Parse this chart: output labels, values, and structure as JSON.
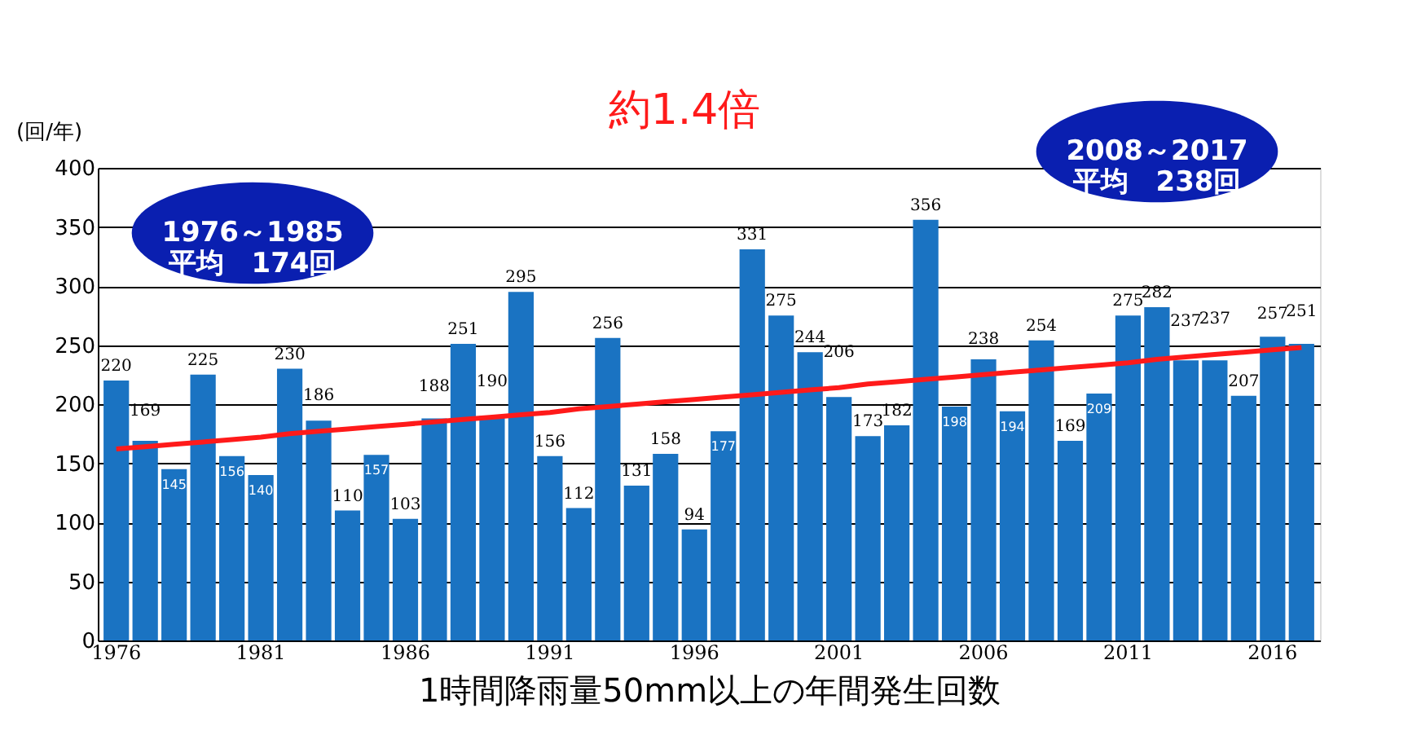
{
  "chart_data": {
    "type": "bar",
    "ylabel": "(回/年)",
    "xlabel": "1時間降雨量50mm以上の年間発生回数",
    "categories": [
      "1976",
      null,
      null,
      null,
      null,
      "1981",
      null,
      null,
      null,
      null,
      "1986",
      null,
      null,
      null,
      null,
      "1991",
      null,
      null,
      null,
      null,
      "1996",
      null,
      null,
      null,
      null,
      "2001",
      null,
      null,
      null,
      null,
      "2006",
      null,
      null,
      null,
      null,
      "2011",
      null,
      null,
      null,
      null,
      "2016",
      null
    ],
    "series": [
      {
        "color": "#1a73c2",
        "values": [
          220,
          169,
          145,
          225,
          156,
          140,
          230,
          186,
          110,
          157,
          103,
          188,
          251,
          190,
          295,
          156,
          112,
          256,
          131,
          158,
          94,
          177,
          331,
          275,
          244,
          206,
          173,
          182,
          356,
          198,
          238,
          194,
          254,
          169,
          209,
          275,
          282,
          237,
          237,
          207,
          257,
          251
        ],
        "value_labels": [
          "220",
          "169",
          "145",
          "225",
          "156",
          "140",
          "230",
          "186",
          "110",
          "157",
          "103",
          "188",
          "251",
          "190",
          "295",
          "156",
          "112",
          "256",
          "131",
          "158",
          "94",
          "177",
          "331",
          "275",
          "244",
          "206",
          "173",
          "182",
          "356",
          "198",
          "238",
          "194",
          "254",
          "169",
          "209",
          "275",
          "282",
          "237",
          "237",
          "207",
          "257",
          "251"
        ]
      },
      {
        "type": "line",
        "color": "#ff1a1a",
        "values": [
          162,
          164,
          166,
          168,
          170,
          172,
          175,
          177,
          179,
          181,
          183,
          185,
          187,
          189,
          191,
          193,
          196,
          198,
          200,
          202,
          204,
          206,
          208,
          210,
          212,
          214,
          217,
          219,
          221,
          223,
          225,
          227,
          229,
          231,
          233,
          235,
          238,
          240,
          242,
          244,
          246,
          248
        ]
      }
    ],
    "ylim": [
      0,
      400
    ],
    "yticks": [
      0,
      50,
      100,
      150,
      200,
      250,
      300,
      350,
      400
    ],
    "grid": "y",
    "annotations": [
      "約1.4倍",
      "1976～1985\n平均　174回",
      "2008～2017\n平均　238回"
    ]
  }
}
